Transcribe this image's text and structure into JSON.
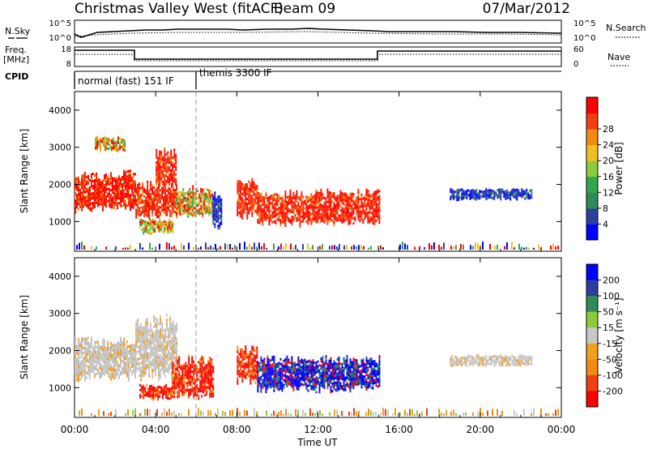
{
  "header": {
    "station": "Christmas Valley West (fitACF)",
    "beam": "Beam 09",
    "date": "07/Mar/2012"
  },
  "strips": {
    "nsky": {
      "label": "N.Sky",
      "right_label": "N.Search",
      "left_ticks": [
        "10^5",
        "10^0"
      ],
      "right_ticks": [
        "10^5",
        "10^0"
      ]
    },
    "freq": {
      "label_line1": "Freq.",
      "label_line2": "[MHz]",
      "right_label": "Nave",
      "left_ticks": [
        "18",
        "8"
      ],
      "right_ticks": [
        "60",
        "0"
      ]
    },
    "cpid": {
      "label": "CPID",
      "modes": [
        {
          "name": "normal (fast) 151 IF",
          "start_hour": 0
        },
        {
          "name": "themis 3300 IF",
          "start_hour": 6
        }
      ]
    }
  },
  "chart_data": [
    {
      "type": "heatmap",
      "name": "power-panel",
      "xlabel": "",
      "ylabel": "Slant Range [km]",
      "xlim": [
        0,
        24
      ],
      "ylim": [
        200,
        4500
      ],
      "yticks": [
        1000,
        2000,
        3000,
        4000
      ],
      "colorbar": {
        "label": "Power [dB]",
        "ticks": [
          "4",
          "8",
          "12",
          "16",
          "20",
          "24",
          "28"
        ],
        "colors": [
          "#0000ff",
          "#2e3ea0",
          "#2f8c5a",
          "#2fa84a",
          "#8ccc3c",
          "#f0c020",
          "#f08c10",
          "#f04010",
          "#ff0000"
        ]
      },
      "regions": [
        {
          "t": [
            0.0,
            0.4
          ],
          "r": [
            1200,
            2400
          ],
          "value": "high"
        },
        {
          "t": [
            0.4,
            3.0
          ],
          "r": [
            1300,
            2400
          ],
          "value": "high"
        },
        {
          "t": [
            1.0,
            2.5
          ],
          "r": [
            2900,
            3300
          ],
          "value": "mid"
        },
        {
          "t": [
            3.0,
            5.0
          ],
          "r": [
            1100,
            2100
          ],
          "value": "high"
        },
        {
          "t": [
            4.0,
            5.0
          ],
          "r": [
            1900,
            3000
          ],
          "value": "high"
        },
        {
          "t": [
            3.2,
            4.8
          ],
          "r": [
            700,
            1100
          ],
          "value": "mid"
        },
        {
          "t": [
            5.0,
            6.8
          ],
          "r": [
            1100,
            2000
          ],
          "value": "mid"
        },
        {
          "t": [
            6.8,
            7.2
          ],
          "r": [
            800,
            1900
          ],
          "value": "low"
        },
        {
          "t": [
            8.0,
            9.0
          ],
          "r": [
            1100,
            2200
          ],
          "value": "high"
        },
        {
          "t": [
            9.0,
            15.0
          ],
          "r": [
            900,
            1900
          ],
          "value": "high"
        },
        {
          "t": [
            18.5,
            22.5
          ],
          "r": [
            1600,
            1900
          ],
          "value": "low"
        }
      ]
    },
    {
      "type": "heatmap",
      "name": "velocity-panel",
      "xlabel": "Time UT",
      "ylabel": "Slant Range [km]",
      "xlim": [
        0,
        24
      ],
      "ylim": [
        200,
        4500
      ],
      "xticks": [
        "00:00",
        "04:00",
        "08:00",
        "12:00",
        "16:00",
        "20:00",
        "00:00"
      ],
      "yticks": [
        1000,
        2000,
        3000,
        4000
      ],
      "colorbar": {
        "label": "Velocity [m s⁻¹]",
        "ticks": [
          "200",
          "100",
          "50",
          "15",
          "-15",
          "-50",
          "-100",
          "-200"
        ],
        "colors": [
          "#0000ff",
          "#2e3ea0",
          "#2f8c5a",
          "#8ccc3c",
          "#c8c8c8",
          "#f0a020",
          "#f08c10",
          "#f04010",
          "#ff0000"
        ]
      },
      "regions": [
        {
          "t": [
            0.0,
            3.0
          ],
          "r": [
            1200,
            2400
          ],
          "value": "ground"
        },
        {
          "t": [
            3.0,
            5.0
          ],
          "r": [
            1200,
            3000
          ],
          "value": "ground"
        },
        {
          "t": [
            3.2,
            4.8
          ],
          "r": [
            700,
            1100
          ],
          "value": "negative"
        },
        {
          "t": [
            4.8,
            6.8
          ],
          "r": [
            700,
            1900
          ],
          "value": "negative"
        },
        {
          "t": [
            8.0,
            9.0
          ],
          "r": [
            1100,
            2200
          ],
          "value": "negative"
        },
        {
          "t": [
            9.0,
            11.0
          ],
          "r": [
            900,
            1900
          ],
          "value": "positive"
        },
        {
          "t": [
            11.0,
            15.0
          ],
          "r": [
            900,
            1900
          ],
          "value": "positive"
        },
        {
          "t": [
            18.5,
            22.5
          ],
          "r": [
            1600,
            1900
          ],
          "value": "ground"
        }
      ]
    }
  ]
}
